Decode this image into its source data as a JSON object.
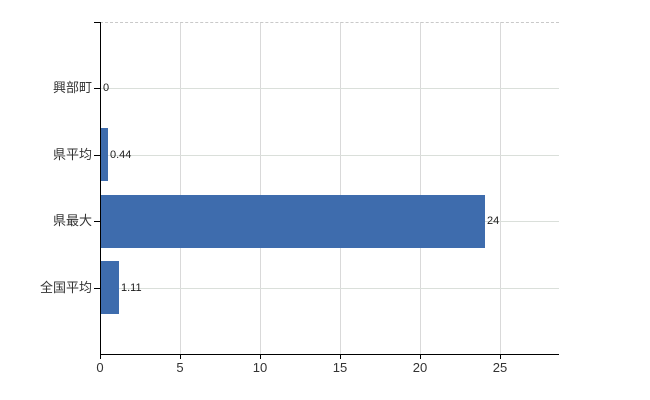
{
  "chart_data": {
    "type": "bar",
    "orientation": "horizontal",
    "title": "",
    "xlabel": "",
    "ylabel": "",
    "categories": [
      "興部町",
      "県平均",
      "県最大",
      "全国平均"
    ],
    "values": [
      0,
      0.44,
      24,
      1.11
    ],
    "value_labels": [
      "0",
      "0.44",
      "24",
      "1.11"
    ],
    "x_ticks": [
      0,
      5,
      10,
      15,
      20,
      25
    ],
    "xlim": [
      0,
      28.7
    ],
    "grid": true,
    "legend": "none",
    "colors": {
      "bar": "#3e6cad",
      "axis": "#000000",
      "vertical_grid": "#d9d9d9",
      "horizontal_grid": "#dadfda",
      "top_border_dashed": "#c9c9c9",
      "text": "#333333",
      "value_text": "#1c1c1c"
    }
  }
}
